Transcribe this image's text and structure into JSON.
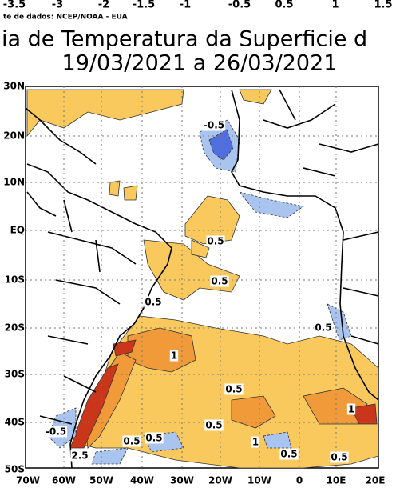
{
  "colorbar_labels": [
    "-3.5",
    "-3",
    "-2",
    "-1.5",
    "-1",
    "-0.5",
    "0.5",
    "1",
    "1.5"
  ],
  "source": "te de dados: NCEP/NOAA - EUA",
  "title": {
    "line1": "ia de Temperatura da Superficie d",
    "line2": "19/03/2021 a 26/03/2021"
  },
  "lat_labels": [
    "30N",
    "20N",
    "10N",
    "EQ",
    "10S",
    "20S",
    "30S",
    "40S",
    "50S"
  ],
  "lon_labels": [
    "70W",
    "60W",
    "50W",
    "40W",
    "30W",
    "20W",
    "10W",
    "0",
    "10E",
    "20E"
  ],
  "contour_labels": [
    "-0.5",
    "0.5",
    "0.5",
    "0.5",
    "0.5",
    "1",
    "0.5",
    "1",
    "-0.5",
    "0.5",
    "0.5",
    "2.5",
    "0.5",
    "1",
    "0.5",
    "0.5"
  ]
}
